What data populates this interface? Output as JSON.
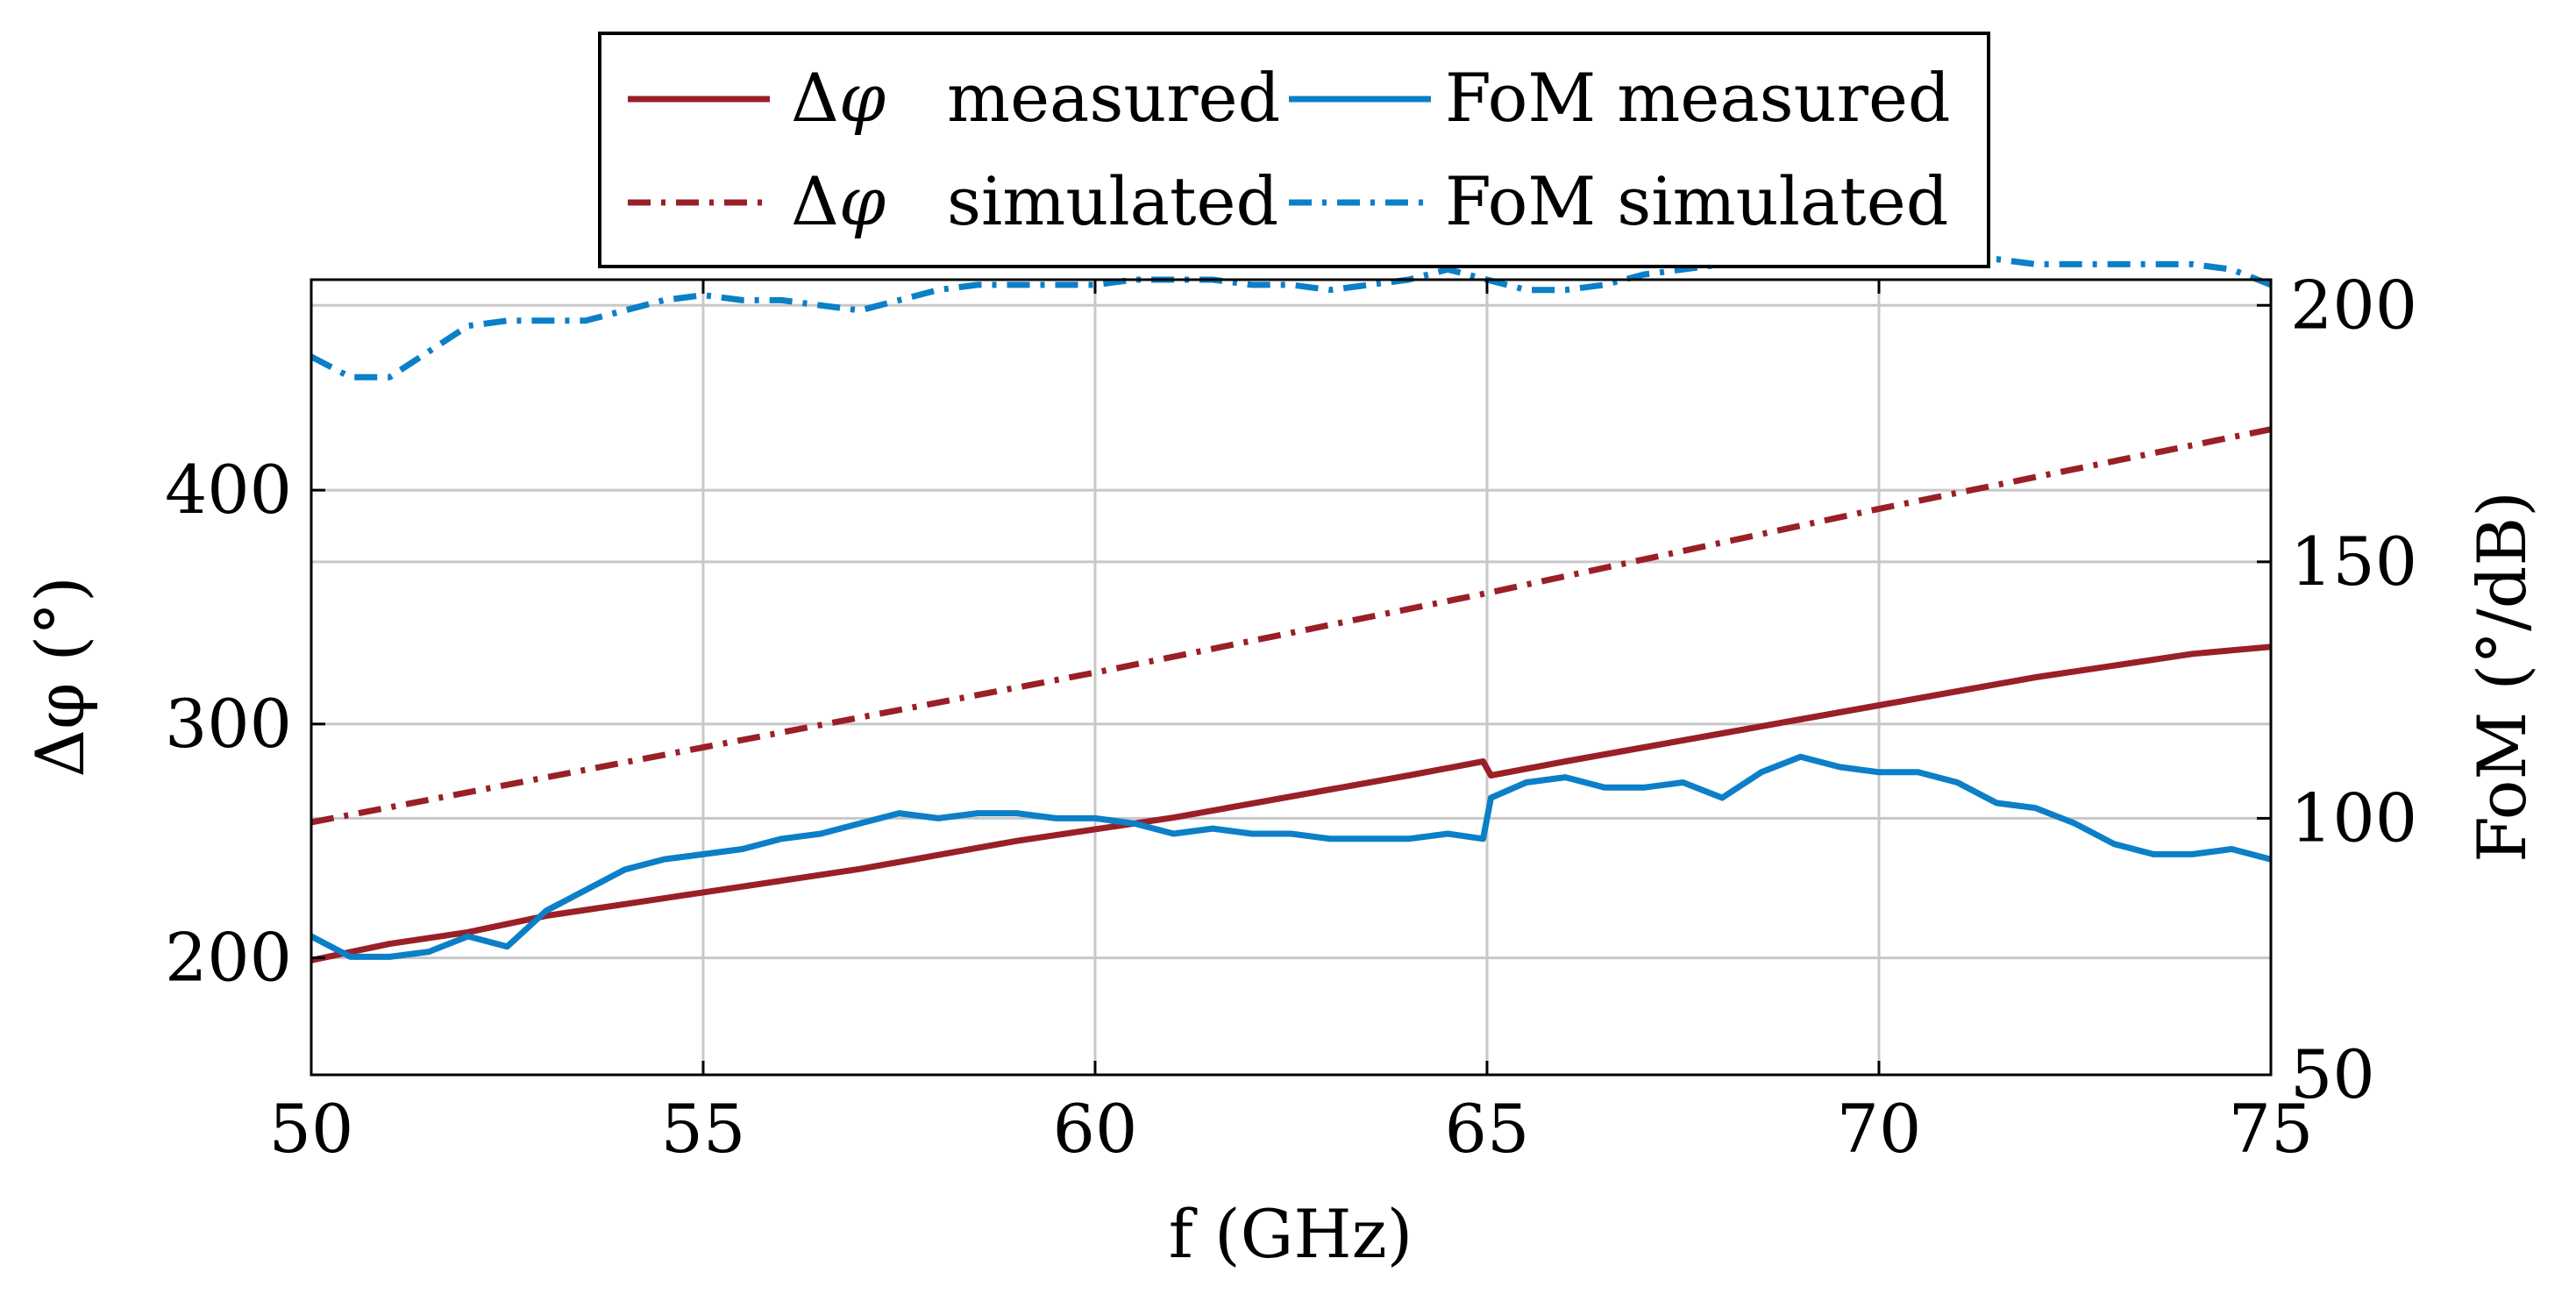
{
  "chart_data": {
    "type": "line",
    "xlabel": "f (GHz)",
    "ylabel_left": "Δφ (°)",
    "ylabel_right": "FoM (°/dB)",
    "xlim": [
      50,
      75
    ],
    "ylim_left": [
      150,
      490
    ],
    "ylim_right": [
      50,
      205
    ],
    "x_ticks": [
      50,
      55,
      60,
      65,
      70,
      75
    ],
    "y_ticks_left": [
      200,
      300,
      400
    ],
    "y_ticks_right": [
      50,
      100,
      150,
      200
    ],
    "grid": true,
    "legend_position": "top",
    "colors": {
      "delta_phi": "#9a1f27",
      "fom": "#0b7fc7"
    },
    "series": [
      {
        "name": "Δφ measured",
        "legend_label": "measured",
        "axis": "left",
        "style": "solid",
        "points": [
          [
            50,
            199
          ],
          [
            51,
            206
          ],
          [
            52,
            211
          ],
          [
            53,
            218
          ],
          [
            54,
            223
          ],
          [
            55,
            228
          ],
          [
            56,
            233
          ],
          [
            57,
            238
          ],
          [
            58,
            244
          ],
          [
            59,
            250
          ],
          [
            60,
            255
          ],
          [
            61,
            260
          ],
          [
            62,
            266
          ],
          [
            63,
            272
          ],
          [
            64,
            278
          ],
          [
            64.95,
            284
          ],
          [
            65.05,
            278
          ],
          [
            66,
            284
          ],
          [
            67,
            290
          ],
          [
            68,
            296
          ],
          [
            69,
            302
          ],
          [
            70,
            308
          ],
          [
            71,
            314
          ],
          [
            72,
            320
          ],
          [
            73,
            325
          ],
          [
            74,
            330
          ],
          [
            75,
            333
          ]
        ]
      },
      {
        "name": "Δφ simulated",
        "legend_label": "simulated",
        "axis": "left",
        "style": "dashdot",
        "points": [
          [
            50,
            258
          ],
          [
            55,
            290
          ],
          [
            60,
            322
          ],
          [
            65,
            356
          ],
          [
            70,
            392
          ],
          [
            75,
            426
          ]
        ]
      },
      {
        "name": "FoM measured",
        "legend_label": "FoM measured",
        "axis": "right",
        "style": "solid",
        "points": [
          [
            50,
            77
          ],
          [
            50.5,
            73
          ],
          [
            51,
            73
          ],
          [
            51.5,
            74
          ],
          [
            52,
            77
          ],
          [
            52.5,
            75
          ],
          [
            53,
            82
          ],
          [
            53.5,
            86
          ],
          [
            54,
            90
          ],
          [
            54.5,
            92
          ],
          [
            55,
            93
          ],
          [
            55.5,
            94
          ],
          [
            56,
            96
          ],
          [
            56.5,
            97
          ],
          [
            57,
            99
          ],
          [
            57.5,
            101
          ],
          [
            58,
            100
          ],
          [
            58.5,
            101
          ],
          [
            59,
            101
          ],
          [
            59.5,
            100
          ],
          [
            60,
            100
          ],
          [
            60.5,
            99
          ],
          [
            61,
            97
          ],
          [
            61.5,
            98
          ],
          [
            62,
            97
          ],
          [
            62.5,
            97
          ],
          [
            63,
            96
          ],
          [
            63.5,
            96
          ],
          [
            64,
            96
          ],
          [
            64.5,
            97
          ],
          [
            64.95,
            96
          ],
          [
            65.05,
            104
          ],
          [
            65.5,
            107
          ],
          [
            66,
            108
          ],
          [
            66.5,
            106
          ],
          [
            67,
            106
          ],
          [
            67.5,
            107
          ],
          [
            68,
            104
          ],
          [
            68.5,
            109
          ],
          [
            69,
            112
          ],
          [
            69.5,
            110
          ],
          [
            70,
            109
          ],
          [
            70.5,
            109
          ],
          [
            71,
            107
          ],
          [
            71.5,
            103
          ],
          [
            72,
            102
          ],
          [
            72.5,
            99
          ],
          [
            73,
            95
          ],
          [
            73.5,
            93
          ],
          [
            74,
            93
          ],
          [
            74.5,
            94
          ],
          [
            75,
            92
          ]
        ]
      },
      {
        "name": "FoM simulated",
        "legend_label": "FoM simulated",
        "axis": "right",
        "style": "dashdot",
        "points": [
          [
            50,
            190
          ],
          [
            50.5,
            186
          ],
          [
            51,
            186
          ],
          [
            51.5,
            191
          ],
          [
            52,
            196
          ],
          [
            52.5,
            197
          ],
          [
            53,
            197
          ],
          [
            53.5,
            197
          ],
          [
            54,
            199
          ],
          [
            54.5,
            201
          ],
          [
            55,
            202
          ],
          [
            55.5,
            201
          ],
          [
            56,
            201
          ],
          [
            56.5,
            200
          ],
          [
            57,
            199
          ],
          [
            57.5,
            201
          ],
          [
            58,
            203
          ],
          [
            58.5,
            204
          ],
          [
            59,
            204
          ],
          [
            59.5,
            204
          ],
          [
            60,
            204
          ],
          [
            60.5,
            205
          ],
          [
            61,
            205
          ],
          [
            61.5,
            205
          ],
          [
            62,
            204
          ],
          [
            62.5,
            204
          ],
          [
            63,
            203
          ],
          [
            63.5,
            204
          ],
          [
            64,
            205
          ],
          [
            64.5,
            207
          ],
          [
            65,
            205
          ],
          [
            65.5,
            203
          ],
          [
            66,
            203
          ],
          [
            66.5,
            204
          ],
          [
            67,
            206
          ],
          [
            67.5,
            207
          ],
          [
            68,
            208
          ],
          [
            68.5,
            208
          ],
          [
            69,
            208
          ],
          [
            69.5,
            208
          ],
          [
            70,
            209
          ],
          [
            70.5,
            209
          ],
          [
            71,
            209
          ],
          [
            71.5,
            209
          ],
          [
            72,
            208
          ],
          [
            72.5,
            208
          ],
          [
            73,
            208
          ],
          [
            73.5,
            208
          ],
          [
            74,
            208
          ],
          [
            74.5,
            207
          ],
          [
            75,
            204
          ]
        ]
      }
    ]
  }
}
